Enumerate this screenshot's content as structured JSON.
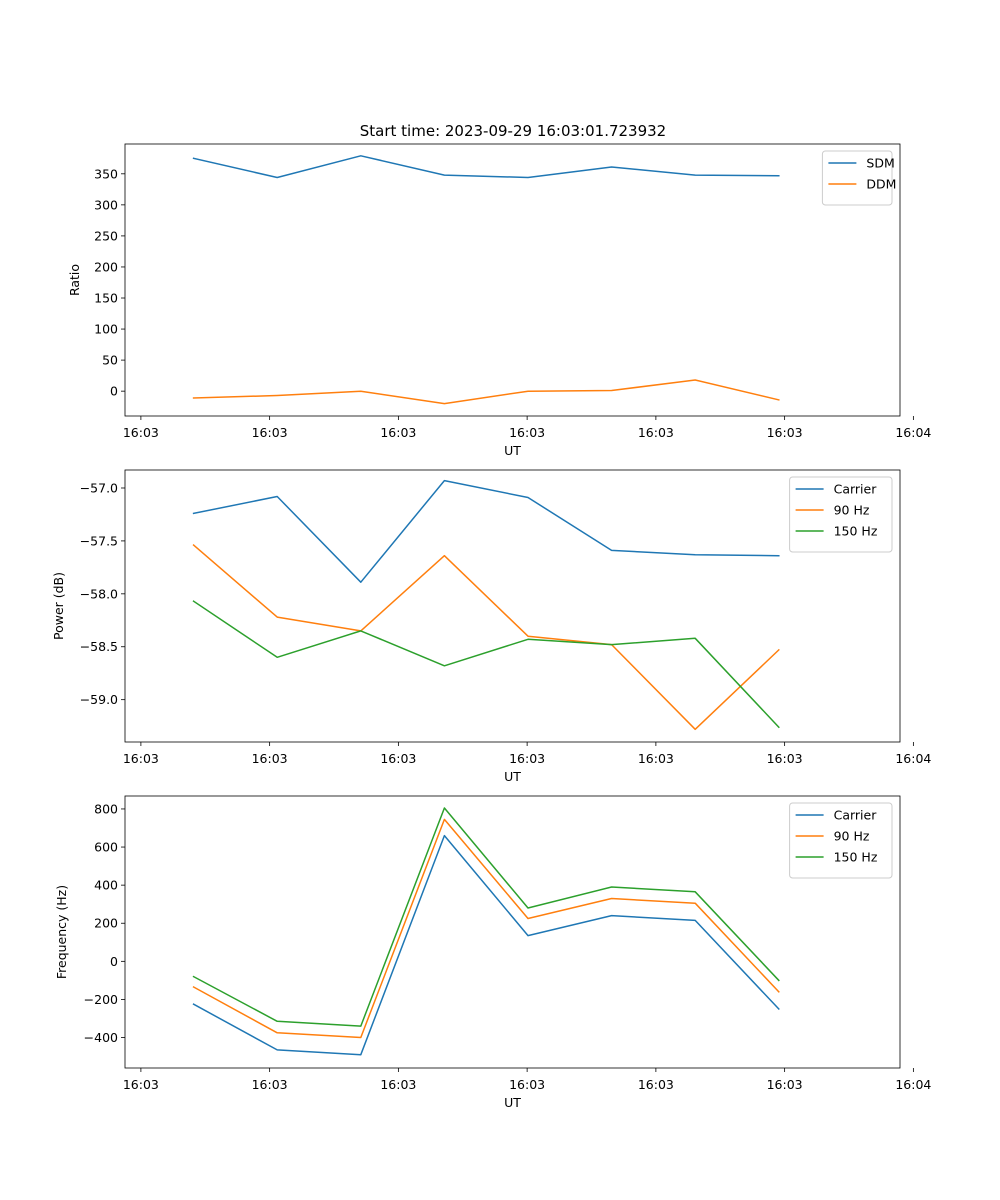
{
  "figure_title": "Start time: 2023-09-29 16:03:01.723932",
  "chart_data": [
    {
      "type": "line",
      "title": "Start time: 2023-09-29 16:03:01.723932",
      "xlabel": "UT",
      "ylabel": "Ratio",
      "x": [
        1,
        2,
        3,
        4,
        5,
        6,
        7,
        8
      ],
      "xlim": [
        0.18,
        9.45
      ],
      "x_ticks": [
        0.37,
        1.91,
        3.45,
        4.99,
        6.53,
        8.07,
        9.61
      ],
      "x_tick_labels": [
        "16:03",
        "16:03",
        "16:03",
        "16:03",
        "16:03",
        "16:03",
        "16:04"
      ],
      "ylim": [
        -40,
        398
      ],
      "y_ticks": [
        0,
        50,
        100,
        150,
        200,
        250,
        300,
        350
      ],
      "y_tick_labels": [
        "0",
        "50",
        "100",
        "150",
        "200",
        "250",
        "300",
        "350"
      ],
      "legend_position": "top-right",
      "series": [
        {
          "name": "SDM",
          "color": "#1f77b4",
          "values": [
            375,
            344,
            379,
            348,
            344,
            361,
            348,
            347
          ]
        },
        {
          "name": "DDM",
          "color": "#ff7f0e",
          "values": [
            -11,
            -7,
            0,
            -20,
            0,
            1,
            18,
            -14
          ]
        }
      ]
    },
    {
      "type": "line",
      "title": "",
      "xlabel": "UT",
      "ylabel": "Power (dB)",
      "x": [
        1,
        2,
        3,
        4,
        5,
        6,
        7,
        8
      ],
      "xlim": [
        0.18,
        9.45
      ],
      "x_ticks": [
        0.37,
        1.91,
        3.45,
        4.99,
        6.53,
        8.07,
        9.61
      ],
      "x_tick_labels": [
        "16:03",
        "16:03",
        "16:03",
        "16:03",
        "16:03",
        "16:03",
        "16:04"
      ],
      "ylim": [
        -59.4,
        -56.83
      ],
      "y_ticks": [
        -59.0,
        -58.5,
        -58.0,
        -57.5,
        -57.0
      ],
      "y_tick_labels": [
        "−59.0",
        "−58.5",
        "−58.0",
        "−57.5",
        "−57.0"
      ],
      "legend_position": "top-right",
      "series": [
        {
          "name": "Carrier",
          "color": "#1f77b4",
          "values": [
            -57.24,
            -57.08,
            -57.89,
            -56.93,
            -57.09,
            -57.59,
            -57.63,
            -57.64
          ]
        },
        {
          "name": "90 Hz",
          "color": "#ff7f0e",
          "values": [
            -57.54,
            -58.22,
            -58.35,
            -57.64,
            -58.4,
            -58.48,
            -59.28,
            -58.53
          ]
        },
        {
          "name": "150 Hz",
          "color": "#2ca02c",
          "values": [
            -58.07,
            -58.6,
            -58.35,
            -58.68,
            -58.43,
            -58.48,
            -58.42,
            -59.26
          ]
        }
      ]
    },
    {
      "type": "line",
      "title": "",
      "xlabel": "UT",
      "ylabel": "Frequency (Hz)",
      "x": [
        1,
        2,
        3,
        4,
        5,
        6,
        7,
        8
      ],
      "xlim": [
        0.18,
        9.45
      ],
      "x_ticks": [
        0.37,
        1.91,
        3.45,
        4.99,
        6.53,
        8.07,
        9.61
      ],
      "x_tick_labels": [
        "16:03",
        "16:03",
        "16:03",
        "16:03",
        "16:03",
        "16:03",
        "16:04"
      ],
      "ylim": [
        -560,
        868
      ],
      "y_ticks": [
        -400,
        -200,
        0,
        200,
        400,
        600,
        800
      ],
      "y_tick_labels": [
        "−400",
        "−200",
        "0",
        "200",
        "400",
        "600",
        "800"
      ],
      "legend_position": "top-right",
      "series": [
        {
          "name": "Carrier",
          "color": "#1f77b4",
          "values": [
            -225,
            -465,
            -490,
            660,
            135,
            240,
            215,
            -250
          ]
        },
        {
          "name": "90 Hz",
          "color": "#ff7f0e",
          "values": [
            -135,
            -375,
            -400,
            745,
            225,
            330,
            305,
            -160
          ]
        },
        {
          "name": "150 Hz",
          "color": "#2ca02c",
          "values": [
            -80,
            -315,
            -340,
            805,
            280,
            390,
            365,
            -100
          ]
        }
      ]
    }
  ]
}
